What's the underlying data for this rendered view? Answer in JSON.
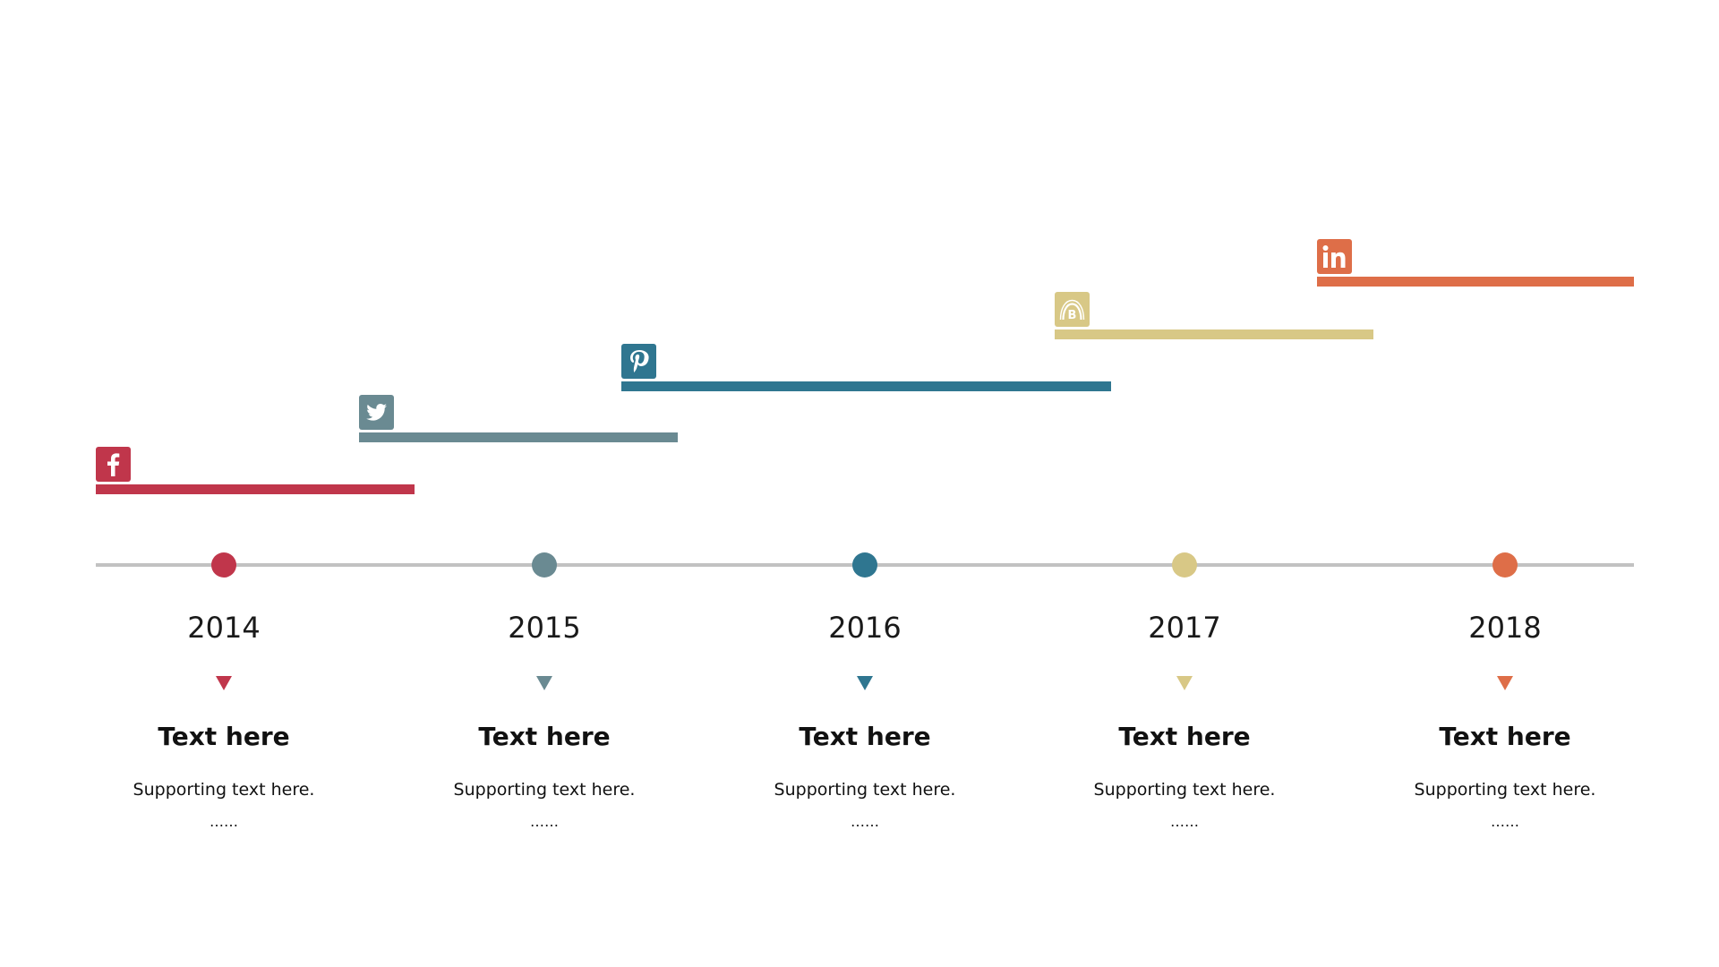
{
  "colors": {
    "red": "#c0364b",
    "slate": "#6a8a92",
    "teal": "#2f7690",
    "sand": "#d8c886",
    "orange": "#de6e48",
    "axis": "#c2c2c2"
  },
  "bars": [
    {
      "icon": "facebook-icon",
      "color": "#c0364b"
    },
    {
      "icon": "twitter-icon",
      "color": "#6a8a92"
    },
    {
      "icon": "pinterest-icon",
      "color": "#2f7690"
    },
    {
      "icon": "blogger-icon",
      "color": "#d8c886"
    },
    {
      "icon": "linkedin-icon",
      "color": "#de6e48"
    }
  ],
  "milestones": [
    {
      "year": "2014",
      "title": "Text here",
      "subtitle": "Supporting text here.",
      "ellipsis": "……",
      "color": "#c0364b"
    },
    {
      "year": "2015",
      "title": "Text here",
      "subtitle": "Supporting text here.",
      "ellipsis": "……",
      "color": "#6a8a92"
    },
    {
      "year": "2016",
      "title": "Text here",
      "subtitle": "Supporting text here.",
      "ellipsis": "……",
      "color": "#2f7690"
    },
    {
      "year": "2017",
      "title": "Text here",
      "subtitle": "Supporting text here.",
      "ellipsis": "……",
      "color": "#d8c886"
    },
    {
      "year": "2018",
      "title": "Text here",
      "subtitle": "Supporting text here.",
      "ellipsis": "……",
      "color": "#de6e48"
    }
  ]
}
